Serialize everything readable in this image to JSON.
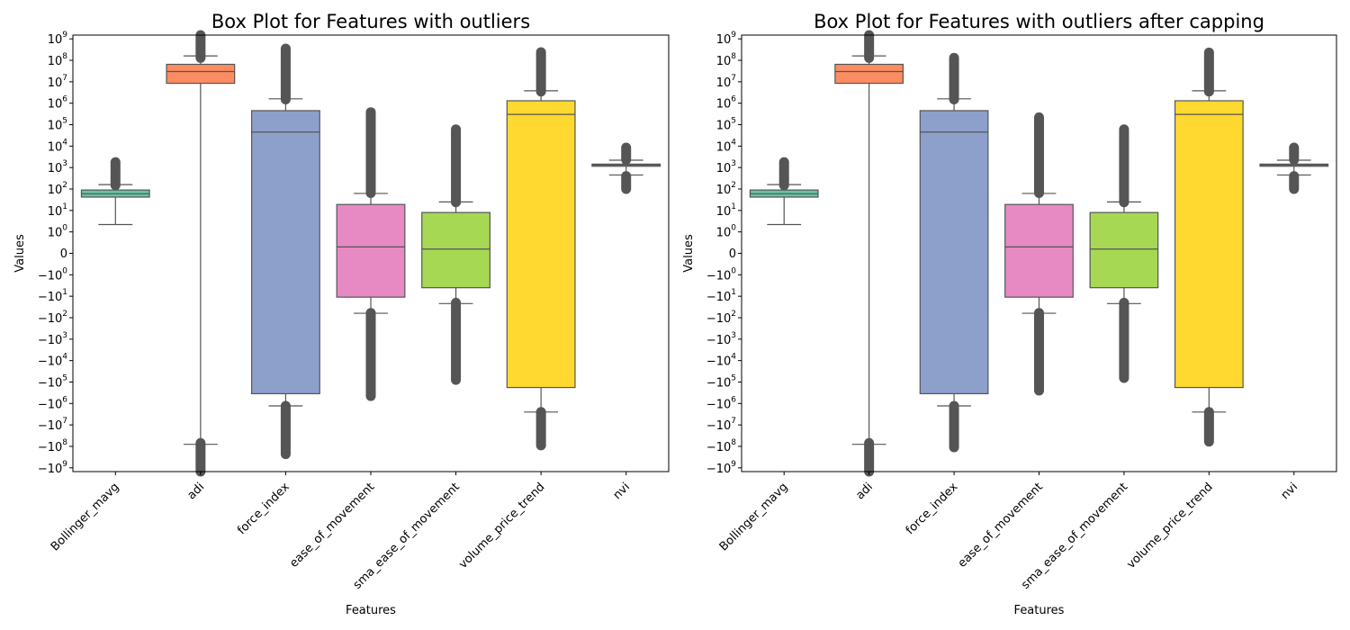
{
  "chart_data": [
    {
      "type": "box",
      "title": "Box Plot for Features with outliers",
      "xlabel": "Features",
      "ylabel": "Values",
      "yscale": "symlog",
      "categories": [
        "Bollinger_mavg",
        "adi",
        "force_index",
        "ease_of_movement",
        "sma_ease_of_movement",
        "volume_price_trend",
        "nvi"
      ],
      "ytick_labels": [
        "10^9",
        "10^8",
        "10^7",
        "10^6",
        "10^5",
        "10^4",
        "10^3",
        "10^2",
        "10^1",
        "10^0",
        "0",
        "-10^0",
        "-10^1",
        "-10^2",
        "-10^3",
        "-10^4",
        "-10^5",
        "-10^6",
        "-10^7",
        "-10^8",
        "-10^9"
      ],
      "boxes": [
        {
          "name": "Bollinger_mavg",
          "color": "#66c2a5",
          "whislo": 2.2,
          "q1": 42,
          "median": 60,
          "q3": 90,
          "whishi": 160,
          "fliers_lo": [],
          "fliers_hi": [
            150,
            1800
          ]
        },
        {
          "name": "adi",
          "color": "#fc8d62",
          "whislo": -80000000,
          "q1": 8500000,
          "median": 30000000,
          "q3": 65000000,
          "whishi": 160000000,
          "fliers_lo": [
            -70000000,
            -1500000000
          ],
          "fliers_hi": [
            130000000,
            1500000000
          ]
        },
        {
          "name": "force_index",
          "color": "#8da0cb",
          "whislo": -1300000,
          "q1": -350000,
          "median": 45000,
          "q3": 450000,
          "whishi": 1600000,
          "fliers_lo": [
            -1300000,
            -230000000
          ],
          "fliers_hi": [
            1500000,
            350000000
          ]
        },
        {
          "name": "ease_of_movement",
          "color": "#e78ac3",
          "whislo": -62,
          "q1": -11,
          "median": 0.3,
          "q3": 19,
          "whishi": 62,
          "fliers_lo": [
            -60,
            -450000
          ],
          "fliers_hi": [
            65,
            380000
          ]
        },
        {
          "name": "sma_ease_of_movement",
          "color": "#a6d854",
          "whislo": -22,
          "q1": -4,
          "median": 0.2,
          "q3": 8,
          "whishi": 25,
          "fliers_lo": [
            -20,
            -80000
          ],
          "fliers_hi": [
            24,
            60000
          ]
        },
        {
          "name": "volume_price_trend",
          "color": "#ffd92f",
          "whislo": -2500000,
          "q1": -180000,
          "median": 300000,
          "q3": 1300000,
          "whishi": 3800000,
          "fliers_lo": [
            -2500000,
            -90000000
          ],
          "fliers_hi": [
            3500000,
            240000000
          ]
        },
        {
          "name": "nvi",
          "color": "#e5c494",
          "whislo": 450,
          "q1": 1150,
          "median": 1300,
          "q3": 1450,
          "whishi": 2200,
          "fliers_lo": [
            400,
            100
          ],
          "fliers_hi": [
            2300,
            8500
          ]
        }
      ]
    },
    {
      "type": "box",
      "title": "Box Plot for Features with outliers after capping",
      "xlabel": "Features",
      "ylabel": "Values",
      "yscale": "symlog",
      "categories": [
        "Bollinger_mavg",
        "adi",
        "force_index",
        "ease_of_movement",
        "sma_ease_of_movement",
        "volume_price_trend",
        "nvi"
      ],
      "ytick_labels": [
        "10^9",
        "10^8",
        "10^7",
        "10^6",
        "10^5",
        "10^4",
        "10^3",
        "10^2",
        "10^1",
        "10^0",
        "0",
        "-10^0",
        "-10^1",
        "-10^2",
        "-10^3",
        "-10^4",
        "-10^5",
        "-10^6",
        "-10^7",
        "-10^8",
        "-10^9"
      ],
      "boxes": [
        {
          "name": "Bollinger_mavg",
          "color": "#66c2a5",
          "whislo": 2.2,
          "q1": 42,
          "median": 60,
          "q3": 90,
          "whishi": 160,
          "fliers_lo": [],
          "fliers_hi": [
            150,
            1800
          ]
        },
        {
          "name": "adi",
          "color": "#fc8d62",
          "whislo": -80000000,
          "q1": 8500000,
          "median": 30000000,
          "q3": 65000000,
          "whishi": 160000000,
          "fliers_lo": [
            -70000000,
            -1500000000
          ],
          "fliers_hi": [
            130000000,
            1500000000
          ]
        },
        {
          "name": "force_index",
          "color": "#8da0cb",
          "whislo": -1300000,
          "q1": -350000,
          "median": 45000,
          "q3": 450000,
          "whishi": 1600000,
          "fliers_lo": [
            -1300000,
            -110000000
          ],
          "fliers_hi": [
            1500000,
            130000000
          ]
        },
        {
          "name": "ease_of_movement",
          "color": "#e78ac3",
          "whislo": -62,
          "q1": -11,
          "median": 0.3,
          "q3": 19,
          "whishi": 62,
          "fliers_lo": [
            -60,
            -250000
          ],
          "fliers_hi": [
            65,
            220000
          ]
        },
        {
          "name": "sma_ease_of_movement",
          "color": "#a6d854",
          "whislo": -22,
          "q1": -4,
          "median": 0.2,
          "q3": 8,
          "whishi": 25,
          "fliers_lo": [
            -20,
            -65000
          ],
          "fliers_hi": [
            24,
            60000
          ]
        },
        {
          "name": "volume_price_trend",
          "color": "#ffd92f",
          "whislo": -2500000,
          "q1": -180000,
          "median": 300000,
          "q3": 1300000,
          "whishi": 3800000,
          "fliers_lo": [
            -2500000,
            -60000000
          ],
          "fliers_hi": [
            3500000,
            230000000
          ]
        },
        {
          "name": "nvi",
          "color": "#e5c494",
          "whislo": 450,
          "q1": 1150,
          "median": 1300,
          "q3": 1450,
          "whishi": 2200,
          "fliers_lo": [
            400,
            100
          ],
          "fliers_hi": [
            2300,
            8500
          ]
        }
      ]
    }
  ]
}
